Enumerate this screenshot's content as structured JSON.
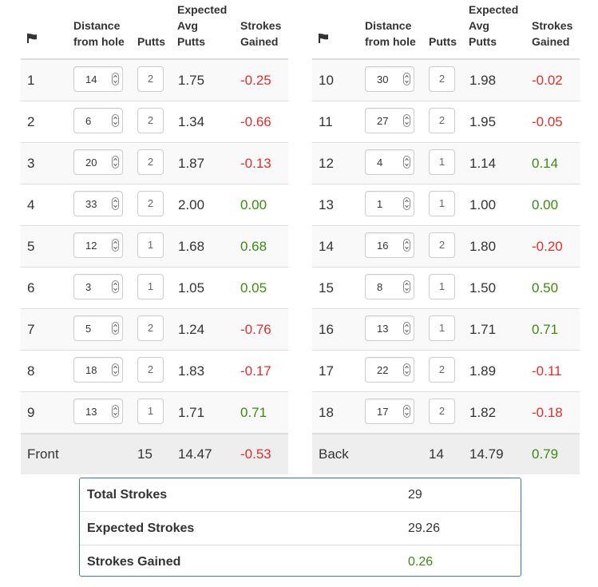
{
  "headers": {
    "flag_icon": "flag-icon",
    "distance": "Distance\nfrom hole",
    "putts": "Putts",
    "expected": "Expected\nAvg\nPutts",
    "strokes_gained": "Strokes\nGained"
  },
  "front": {
    "rows": [
      {
        "hole": "1",
        "distance": "14",
        "putts": "2",
        "expected": "1.75",
        "sg": "-0.25"
      },
      {
        "hole": "2",
        "distance": "6",
        "putts": "2",
        "expected": "1.34",
        "sg": "-0.66"
      },
      {
        "hole": "3",
        "distance": "20",
        "putts": "2",
        "expected": "1.87",
        "sg": "-0.13"
      },
      {
        "hole": "4",
        "distance": "33",
        "putts": "2",
        "expected": "2.00",
        "sg": "0.00"
      },
      {
        "hole": "5",
        "distance": "12",
        "putts": "1",
        "expected": "1.68",
        "sg": "0.68"
      },
      {
        "hole": "6",
        "distance": "3",
        "putts": "1",
        "expected": "1.05",
        "sg": "0.05"
      },
      {
        "hole": "7",
        "distance": "5",
        "putts": "2",
        "expected": "1.24",
        "sg": "-0.76"
      },
      {
        "hole": "8",
        "distance": "18",
        "putts": "2",
        "expected": "1.83",
        "sg": "-0.17"
      },
      {
        "hole": "9",
        "distance": "13",
        "putts": "1",
        "expected": "1.71",
        "sg": "0.71"
      }
    ],
    "total": {
      "label": "Front",
      "putts": "15",
      "expected": "14.47",
      "sg": "-0.53"
    }
  },
  "back": {
    "rows": [
      {
        "hole": "10",
        "distance": "30",
        "putts": "2",
        "expected": "1.98",
        "sg": "-0.02"
      },
      {
        "hole": "11",
        "distance": "27",
        "putts": "2",
        "expected": "1.95",
        "sg": "-0.05"
      },
      {
        "hole": "12",
        "distance": "4",
        "putts": "1",
        "expected": "1.14",
        "sg": "0.14"
      },
      {
        "hole": "13",
        "distance": "1",
        "putts": "1",
        "expected": "1.00",
        "sg": "0.00"
      },
      {
        "hole": "14",
        "distance": "16",
        "putts": "2",
        "expected": "1.80",
        "sg": "-0.20"
      },
      {
        "hole": "15",
        "distance": "8",
        "putts": "1",
        "expected": "1.50",
        "sg": "0.50"
      },
      {
        "hole": "16",
        "distance": "13",
        "putts": "1",
        "expected": "1.71",
        "sg": "0.71"
      },
      {
        "hole": "17",
        "distance": "22",
        "putts": "2",
        "expected": "1.89",
        "sg": "-0.11"
      },
      {
        "hole": "18",
        "distance": "17",
        "putts": "2",
        "expected": "1.82",
        "sg": "-0.18"
      }
    ],
    "total": {
      "label": "Back",
      "putts": "14",
      "expected": "14.79",
      "sg": "0.79"
    }
  },
  "summary": {
    "total_strokes_label": "Total Strokes",
    "total_strokes": "29",
    "expected_strokes_label": "Expected Strokes",
    "expected_strokes": "29.26",
    "strokes_gained_label": "Strokes Gained",
    "strokes_gained": "0.26"
  },
  "colors": {
    "negative": "#e02e2e",
    "positive": "#3c8a10",
    "summary_border": "#337ab7"
  }
}
